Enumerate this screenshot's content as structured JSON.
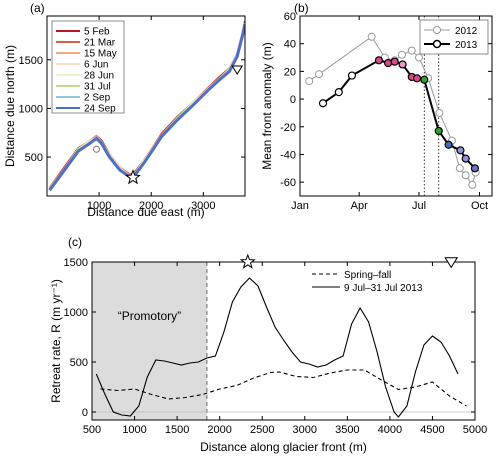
{
  "chart_data": [
    {
      "panel": "(a)",
      "type": "line",
      "xlabel": "Distance due east (m)",
      "ylabel": "Distance due north (m)",
      "xlim": [
        0,
        3800
      ],
      "ylim": [
        100,
        1950
      ],
      "xticks": [
        1000,
        2000,
        3000
      ],
      "yticks": [
        500,
        1000,
        1500
      ],
      "legend_position": "top-left",
      "series": [
        {
          "name": "5 Feb",
          "color": "#b2182b",
          "offset": 14
        },
        {
          "name": "21 Mar",
          "color": "#d6604d",
          "offset": 10
        },
        {
          "name": "15 May",
          "color": "#f4a582",
          "offset": 6
        },
        {
          "name": "6 Jun",
          "color": "#fddbc7",
          "offset": 2
        },
        {
          "name": "28 Jun",
          "color": "#e6f5d0",
          "offset": -2
        },
        {
          "name": "31 Jul",
          "color": "#b8e186",
          "offset": -6
        },
        {
          "name": "2 Sep",
          "color": "#92c5de",
          "offset": -10
        },
        {
          "name": "24 Sep",
          "color": "#4f6fc4",
          "offset": -14
        }
      ],
      "front_x": [
        50,
        300,
        600,
        800,
        950,
        1050,
        1200,
        1400,
        1600,
        1700,
        1850,
        2000,
        2200,
        2500,
        2800,
        3100,
        3300,
        3500,
        3650,
        3750,
        3800
      ],
      "front_y": [
        170,
        350,
        580,
        650,
        700,
        650,
        520,
        380,
        300,
        340,
        450,
        560,
        720,
        900,
        1050,
        1200,
        1300,
        1400,
        1550,
        1750,
        1880
      ],
      "markers": [
        {
          "symbol": "star",
          "x": 1650,
          "y": 290
        },
        {
          "symbol": "triangle-down",
          "x": 3650,
          "y": 1400
        },
        {
          "symbol": "circle",
          "x": 950,
          "y": 580
        }
      ]
    },
    {
      "panel": "(b)",
      "type": "line",
      "ylabel": "Mean front anomaly (m)",
      "xlim": [
        "Jan 1",
        "Oct 20"
      ],
      "ylim": [
        -70,
        60
      ],
      "xticks": [
        "Jan",
        "Apr",
        "Jul",
        "Oct"
      ],
      "yticks": [
        -60,
        -40,
        -20,
        0,
        20,
        40,
        60
      ],
      "legend_position": "top-right",
      "vertical_lines": [
        "Jul 9",
        "Jul 31"
      ],
      "series": [
        {
          "name": "2012",
          "color": "#999999",
          "x": [
            "Jan 15",
            "Jan 30",
            "Apr 20",
            "May 10",
            "May 25",
            "Jun 5",
            "Jun 20",
            "Jul 1",
            "Jul 15",
            "Aug 1",
            "Aug 20",
            "Sep 1",
            "Sep 10",
            "Sep 20",
            "Sep 25"
          ],
          "y": [
            13,
            18,
            45,
            30,
            28,
            32,
            35,
            30,
            15,
            -10,
            -30,
            -50,
            -55,
            -62,
            -53
          ]
        },
        {
          "name": "2013",
          "color": "#000000",
          "x": [
            "Feb 5",
            "Mar 1",
            "Mar 21",
            "May 1",
            "May 15",
            "May 25",
            "Jun 6",
            "Jun 20",
            "Jun 28",
            "Jul 9",
            "Jul 31",
            "Aug 15",
            "Sep 2",
            "Sep 10",
            "Sep 24"
          ],
          "y": [
            -3,
            5,
            17,
            28,
            26,
            27,
            25,
            16,
            15,
            14,
            -23,
            -33,
            -37,
            -43,
            -50
          ],
          "marker_colors": [
            "#ffffff",
            "#ffffff",
            "#ffffff",
            "#d64a8c",
            "#d64a8c",
            "#d64a8c",
            "#e89ac0",
            "#d64a8c",
            "#d64a8c",
            "#33a02c",
            "#33a02c",
            "#4a6bbf",
            "#9090d8",
            "#9090d8",
            "#7070c0"
          ]
        }
      ]
    },
    {
      "panel": "(c)",
      "type": "line",
      "xlabel": "Distance along glacier front (m)",
      "ylabel": "Retreat rate, R (m yr⁻¹)",
      "xlim": [
        500,
        5000
      ],
      "ylim": [
        -80,
        1500
      ],
      "xticks": [
        500,
        1000,
        1500,
        2000,
        2500,
        3000,
        3500,
        4000,
        4500,
        5000
      ],
      "yticks": [
        0,
        500,
        1000,
        1500
      ],
      "legend_position": "top-right",
      "shaded_region": {
        "x0": 500,
        "x1": 1850,
        "label": "“Promotory”"
      },
      "top_markers": [
        {
          "symbol": "star",
          "x": 2330
        },
        {
          "symbol": "triangle-down",
          "x": 4720
        }
      ],
      "series": [
        {
          "name": "Spring–fall",
          "style": "dashed",
          "x": [
            600,
            800,
            1000,
            1200,
            1400,
            1600,
            1800,
            2000,
            2200,
            2400,
            2600,
            2700,
            2900,
            3100,
            3300,
            3500,
            3700,
            3900,
            4100,
            4300,
            4500,
            4700,
            4900
          ],
          "y": [
            230,
            215,
            230,
            175,
            130,
            145,
            175,
            230,
            265,
            340,
            395,
            400,
            355,
            345,
            390,
            420,
            420,
            320,
            225,
            250,
            300,
            160,
            60
          ]
        },
        {
          "name": "9 Jul–31 Jul 2013",
          "style": "solid",
          "x": [
            550,
            650,
            750,
            850,
            950,
            1050,
            1150,
            1250,
            1350,
            1450,
            1550,
            1650,
            1750,
            1850,
            1950,
            2050,
            2150,
            2250,
            2350,
            2450,
            2550,
            2650,
            2750,
            2850,
            2950,
            3050,
            3150,
            3250,
            3350,
            3450,
            3550,
            3650,
            3750,
            3850,
            3950,
            4050,
            4100,
            4200,
            4300,
            4400,
            4500,
            4600,
            4700,
            4800
          ],
          "y": [
            380,
            180,
            0,
            -30,
            -40,
            60,
            350,
            520,
            510,
            490,
            470,
            490,
            500,
            540,
            560,
            800,
            1100,
            1250,
            1340,
            1260,
            1050,
            850,
            720,
            600,
            500,
            480,
            450,
            470,
            520,
            560,
            880,
            1040,
            900,
            600,
            250,
            0,
            -50,
            60,
            400,
            670,
            760,
            700,
            560,
            380
          ]
        }
      ]
    }
  ]
}
